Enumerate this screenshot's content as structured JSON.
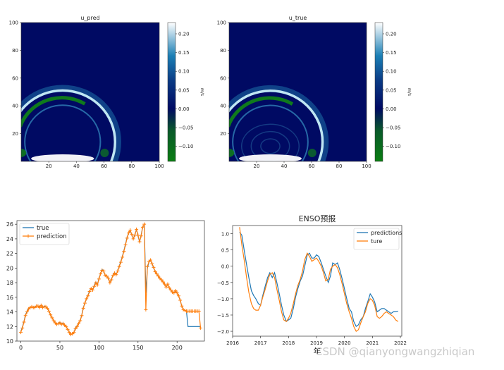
{
  "watermark": "CSDN @qianyongwangzhiqian",
  "chart_data": [
    {
      "type": "heatmap",
      "title": "u_pred",
      "xticks": [
        "20",
        "40",
        "60",
        "80",
        "100"
      ],
      "yticks": [
        "20",
        "40",
        "60",
        "80",
        "100"
      ],
      "xlim": [
        0,
        100
      ],
      "ylim": [
        0,
        100
      ],
      "colorbar": {
        "label": "m/s",
        "ticks": [
          "0.20",
          "0.15",
          "0.10",
          "0.05",
          "0.00",
          "−0.05",
          "−0.10"
        ],
        "range": [
          -0.14,
          0.23
        ],
        "colors": [
          "#0a7d12",
          "#000a63",
          "#0f5fa0",
          "#ffffff"
        ]
      },
      "field": {
        "center": [
          30,
          14
        ],
        "ring_radius": 38,
        "inner_noise": false
      }
    },
    {
      "type": "heatmap",
      "title": "u_true",
      "xticks": [
        "20",
        "40",
        "60",
        "80",
        "100"
      ],
      "yticks": [
        "20",
        "40",
        "60",
        "80",
        "100"
      ],
      "xlim": [
        0,
        100
      ],
      "ylim": [
        0,
        100
      ],
      "colorbar": {
        "label": "m/s",
        "ticks": [
          "0.20",
          "0.15",
          "0.10",
          "0.05",
          "0.00",
          "−0.05",
          "−0.10"
        ],
        "range": [
          -0.14,
          0.23
        ],
        "colors": [
          "#0a7d12",
          "#000a63",
          "#0f5fa0",
          "#ffffff"
        ]
      },
      "field": {
        "center": [
          30,
          14
        ],
        "ring_radius": 38,
        "inner_noise": true
      }
    },
    {
      "type": "line",
      "title": "",
      "xlim": [
        -5,
        235
      ],
      "ylim": [
        10,
        26.5
      ],
      "xticks": [
        "0",
        "50",
        "100",
        "150",
        "200"
      ],
      "yticks": [
        "10",
        "12",
        "14",
        "16",
        "18",
        "20",
        "22",
        "24",
        "26"
      ],
      "legend_position": "top-left",
      "series": [
        {
          "name": "true",
          "color": "#1f77b4",
          "x": [
            0,
            2,
            4,
            6,
            8,
            10,
            12,
            14,
            16,
            18,
            20,
            22,
            24,
            26,
            28,
            30,
            32,
            34,
            36,
            38,
            40,
            42,
            44,
            46,
            48,
            50,
            52,
            54,
            56,
            58,
            60,
            62,
            64,
            66,
            68,
            70,
            72,
            74,
            76,
            78,
            80,
            82,
            84,
            86,
            88,
            90,
            92,
            94,
            96,
            98,
            100,
            102,
            104,
            106,
            108,
            110,
            112,
            114,
            116,
            118,
            120,
            122,
            124,
            126,
            128,
            130,
            132,
            134,
            136,
            138,
            140,
            142,
            144,
            146,
            148,
            150,
            152,
            154,
            156,
            158,
            160,
            162,
            164,
            166,
            168,
            170,
            172,
            174,
            176,
            178,
            180,
            182,
            184,
            186,
            188,
            190,
            192,
            194,
            196,
            198,
            200,
            202,
            204,
            206,
            208,
            210,
            212,
            214,
            216,
            218,
            220,
            222,
            224,
            226,
            228,
            230
          ],
          "y": [
            11.3,
            11.9,
            12.7,
            13.6,
            14.1,
            14.5,
            14.6,
            14.7,
            14.6,
            14.7,
            14.8,
            14.8,
            14.7,
            14.9,
            14.6,
            14.8,
            14.7,
            14.5,
            14.1,
            13.6,
            13.2,
            12.8,
            12.5,
            12.3,
            12.4,
            12.6,
            12.3,
            12.5,
            12.2,
            12.0,
            11.6,
            11.2,
            10.9,
            11.0,
            11.2,
            11.8,
            12.1,
            12.4,
            12.8,
            13.6,
            14.6,
            15.2,
            15.8,
            16.3,
            16.9,
            17.2,
            17.0,
            17.6,
            18.1,
            17.7,
            18.6,
            19.2,
            19.8,
            19.6,
            19.0,
            18.9,
            18.6,
            18.0,
            18.5,
            19.0,
            19.4,
            19.1,
            19.6,
            20.3,
            20.9,
            21.6,
            22.4,
            23.3,
            24.2,
            24.8,
            25.1,
            24.6,
            24.0,
            24.6,
            25.3,
            24.4,
            23.6,
            24.5,
            25.6,
            25.9,
            16.6,
            20.0,
            20.8,
            21.1,
            20.6,
            20.0,
            19.5,
            19.2,
            18.9,
            18.6,
            18.4,
            18.1,
            17.8,
            17.4,
            17.8,
            17.3,
            17.0,
            16.7,
            16.6,
            16.9,
            16.6,
            16.2,
            15.6,
            14.8,
            14.3,
            14.2,
            14.1,
            12.0,
            12.0,
            12.0,
            12.0,
            12.0,
            12.0,
            12.0,
            12.0,
            12.0
          ]
        },
        {
          "name": "prediction",
          "color": "#ff7f0e",
          "x": [
            0,
            2,
            4,
            6,
            8,
            10,
            12,
            14,
            16,
            18,
            20,
            22,
            24,
            26,
            28,
            30,
            32,
            34,
            36,
            38,
            40,
            42,
            44,
            46,
            48,
            50,
            52,
            54,
            56,
            58,
            60,
            62,
            64,
            66,
            68,
            70,
            72,
            74,
            76,
            78,
            80,
            82,
            84,
            86,
            88,
            90,
            92,
            94,
            96,
            98,
            100,
            102,
            104,
            106,
            108,
            110,
            112,
            114,
            116,
            118,
            120,
            122,
            124,
            126,
            128,
            130,
            132,
            134,
            136,
            138,
            140,
            142,
            144,
            146,
            148,
            150,
            152,
            154,
            156,
            158,
            160,
            162,
            164,
            166,
            168,
            170,
            172,
            174,
            176,
            178,
            180,
            182,
            184,
            186,
            188,
            190,
            192,
            194,
            196,
            198,
            200,
            202,
            204,
            206,
            208,
            210,
            212,
            214,
            216,
            218,
            220,
            222,
            224,
            226,
            228,
            230
          ],
          "y": [
            11.2,
            11.8,
            12.6,
            13.5,
            14.0,
            14.4,
            14.6,
            14.7,
            14.6,
            14.6,
            14.8,
            14.8,
            14.6,
            14.9,
            14.6,
            14.7,
            14.7,
            14.5,
            14.1,
            13.6,
            13.2,
            12.8,
            12.5,
            12.3,
            12.4,
            12.5,
            12.3,
            12.4,
            12.2,
            12.0,
            11.6,
            11.2,
            10.9,
            11.0,
            11.2,
            11.7,
            12.0,
            12.4,
            12.8,
            13.5,
            14.5,
            15.2,
            15.8,
            16.2,
            16.8,
            17.2,
            17.0,
            17.5,
            18.0,
            17.7,
            18.5,
            19.2,
            19.7,
            19.6,
            19.0,
            18.9,
            18.6,
            18.0,
            18.4,
            19.0,
            19.3,
            19.1,
            19.6,
            20.2,
            20.8,
            21.5,
            22.3,
            23.2,
            24.1,
            24.8,
            25.2,
            24.6,
            24.0,
            24.5,
            25.3,
            24.5,
            23.6,
            24.4,
            25.6,
            26.0,
            14.3,
            20.2,
            20.9,
            21.1,
            20.6,
            20.1,
            19.5,
            19.2,
            18.9,
            18.6,
            18.4,
            18.1,
            17.8,
            17.4,
            17.8,
            17.3,
            17.0,
            16.7,
            16.6,
            16.9,
            16.6,
            16.2,
            15.6,
            14.8,
            14.3,
            14.2,
            14.1,
            14.1,
            14.1,
            14.1,
            14.1,
            14.1,
            14.1,
            14.1,
            14.1,
            11.8
          ]
        }
      ]
    },
    {
      "type": "line",
      "title": "ENSO预报",
      "xlabel": "年",
      "xlim": [
        2016,
        2022.05
      ],
      "ylim": [
        -2.15,
        1.25
      ],
      "xticks": [
        "2016",
        "2017",
        "2018",
        "2019",
        "2020",
        "2021",
        "2022"
      ],
      "yticks": [
        "1.0",
        "0.5",
        "0.0",
        "−0.5",
        "−1.0",
        "−1.5",
        "−2.0"
      ],
      "legend_position": "top-right",
      "series": [
        {
          "name": "predictions",
          "color": "#1f77b4",
          "x": [
            2016.25,
            2016.33,
            2016.42,
            2016.5,
            2016.58,
            2016.67,
            2016.75,
            2016.83,
            2016.92,
            2017.0,
            2017.08,
            2017.17,
            2017.25,
            2017.33,
            2017.42,
            2017.5,
            2017.58,
            2017.67,
            2017.75,
            2017.83,
            2017.92,
            2018.0,
            2018.08,
            2018.17,
            2018.25,
            2018.33,
            2018.42,
            2018.5,
            2018.58,
            2018.67,
            2018.75,
            2018.83,
            2018.92,
            2019.0,
            2019.08,
            2019.17,
            2019.25,
            2019.33,
            2019.42,
            2019.5,
            2019.58,
            2019.67,
            2019.75,
            2019.83,
            2019.92,
            2020.0,
            2020.08,
            2020.17,
            2020.25,
            2020.33,
            2020.42,
            2020.5,
            2020.58,
            2020.67,
            2020.75,
            2020.83,
            2020.92,
            2021.0,
            2021.08,
            2021.17,
            2021.25,
            2021.33,
            2021.42,
            2021.5,
            2021.58,
            2021.67,
            2021.75,
            2021.83,
            2021.92
          ],
          "y": [
            1.05,
            0.95,
            0.45,
            0.05,
            -0.35,
            -0.75,
            -0.9,
            -1.0,
            -1.15,
            -1.2,
            -0.9,
            -0.6,
            -0.35,
            -0.2,
            -0.35,
            -0.2,
            -0.5,
            -0.85,
            -1.2,
            -1.5,
            -1.7,
            -1.65,
            -1.6,
            -1.3,
            -0.95,
            -0.7,
            -0.45,
            -0.3,
            0.0,
            0.35,
            0.4,
            0.25,
            0.25,
            0.35,
            0.3,
            0.1,
            -0.1,
            -0.3,
            -0.5,
            -0.3,
            0.1,
            0.05,
            0.1,
            -0.1,
            -0.4,
            -0.7,
            -1.0,
            -1.3,
            -1.4,
            -1.7,
            -1.85,
            -1.8,
            -1.65,
            -1.55,
            -1.3,
            -1.1,
            -0.85,
            -0.95,
            -1.1,
            -1.4,
            -1.35,
            -1.3,
            -1.3,
            -1.35,
            -1.4,
            -1.45,
            -1.4,
            -1.4,
            -1.38
          ]
        },
        {
          "name": "ture",
          "color": "#ff7f0e",
          "x": [
            2016.25,
            2016.33,
            2016.42,
            2016.5,
            2016.58,
            2016.67,
            2016.75,
            2016.83,
            2016.92,
            2017.0,
            2017.08,
            2017.17,
            2017.25,
            2017.33,
            2017.42,
            2017.5,
            2017.58,
            2017.67,
            2017.75,
            2017.83,
            2017.92,
            2018.0,
            2018.08,
            2018.17,
            2018.25,
            2018.33,
            2018.42,
            2018.5,
            2018.58,
            2018.67,
            2018.75,
            2018.83,
            2018.92,
            2019.0,
            2019.08,
            2019.17,
            2019.25,
            2019.33,
            2019.42,
            2019.5,
            2019.58,
            2019.67,
            2019.75,
            2019.83,
            2019.92,
            2020.0,
            2020.08,
            2020.17,
            2020.25,
            2020.33,
            2020.42,
            2020.5,
            2020.58,
            2020.67,
            2020.75,
            2020.83,
            2020.92,
            2021.0,
            2021.08,
            2021.17,
            2021.25,
            2021.33,
            2021.42,
            2021.5,
            2021.58,
            2021.67,
            2021.75,
            2021.83,
            2021.92
          ],
          "y": [
            1.2,
            0.65,
            0.15,
            -0.35,
            -0.8,
            -1.15,
            -1.3,
            -1.35,
            -1.35,
            -1.2,
            -0.95,
            -0.7,
            -0.45,
            -0.25,
            -0.2,
            -0.35,
            -0.7,
            -1.05,
            -1.4,
            -1.65,
            -1.7,
            -1.6,
            -1.45,
            -1.15,
            -0.85,
            -0.6,
            -0.4,
            -0.15,
            0.2,
            0.4,
            0.3,
            0.15,
            0.2,
            0.25,
            0.15,
            0.0,
            -0.2,
            -0.45,
            -0.4,
            -0.1,
            0.0,
            0.05,
            -0.05,
            -0.25,
            -0.55,
            -0.85,
            -1.15,
            -1.4,
            -1.6,
            -1.85,
            -2.0,
            -1.95,
            -1.75,
            -1.55,
            -1.4,
            -1.15,
            -1.0,
            -1.05,
            -1.2,
            -1.55,
            -1.6,
            -1.55,
            -1.45,
            -1.4,
            -1.45,
            -1.5,
            -1.55,
            -1.65,
            -1.7
          ]
        }
      ]
    }
  ]
}
